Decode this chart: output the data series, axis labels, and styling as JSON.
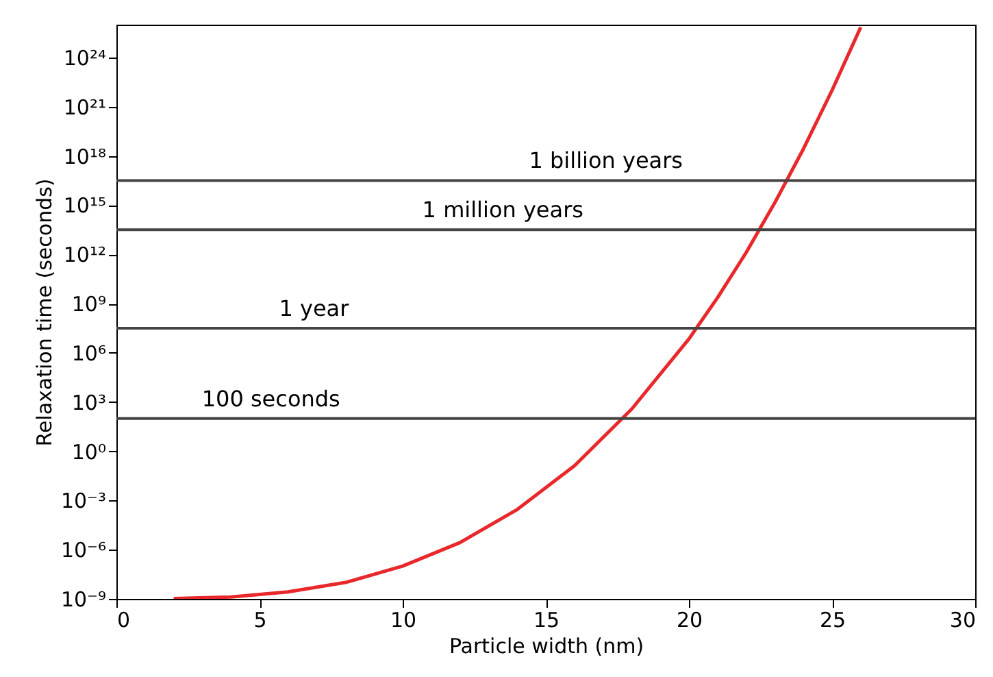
{
  "chart_data": {
    "type": "line",
    "xlabel": "Particle width (nm)",
    "ylabel": "Relaxation time (seconds)",
    "x": [
      2,
      4,
      6,
      8,
      10,
      12,
      14,
      16,
      18,
      20,
      21,
      22,
      23,
      24,
      25,
      26
    ],
    "series": [
      {
        "color": "#e8282a",
        "values": [
          1.04e-09,
          1.3e-09,
          2.7e-09,
          1e-08,
          1e-07,
          2.7e-06,
          0.00028,
          0.13,
          370,
          7000000.0,
          2300000000.0,
          1300000000000.0,
          1400000000000000.0,
          2.7e+18,
          1e+22,
          7e+25
        ]
      }
    ],
    "log": "y",
    "xlim": [
      0,
      30
    ],
    "xticks": [
      0,
      5,
      10,
      15,
      20,
      25,
      30
    ],
    "ylim": [
      1e-09,
      1e+26
    ],
    "yticks": [
      {
        "value": 1e-09,
        "label": "10⁻⁹"
      },
      {
        "value": 1e-06,
        "label": "10⁻⁶"
      },
      {
        "value": 0.001,
        "label": "10⁻³"
      },
      {
        "value": 1,
        "label": "10⁰"
      },
      {
        "value": 1000.0,
        "label": "10³"
      },
      {
        "value": 1000000.0,
        "label": "10⁶"
      },
      {
        "value": 1000000000.0,
        "label": "10⁹"
      },
      {
        "value": 1000000000000.0,
        "label": "10¹²"
      },
      {
        "value": 1000000000000000.0,
        "label": "10¹⁵"
      },
      {
        "value": 1e+18,
        "label": "10¹⁸"
      },
      {
        "value": 1e+21,
        "label": "10²¹"
      },
      {
        "value": 1e+24,
        "label": "10²⁴"
      }
    ],
    "ref_lines": [
      {
        "axis": "y",
        "value": 100,
        "label": "100 seconds",
        "color": "#444444"
      },
      {
        "axis": "y",
        "value": 31500000.0,
        "label": "1 year",
        "color": "#444444"
      },
      {
        "axis": "y",
        "value": 31500000000000.0,
        "label": "1 million years",
        "color": "#444444"
      },
      {
        "axis": "y",
        "value": 3.15e+16,
        "label": "1 billion years",
        "color": "#444444"
      }
    ],
    "grid": false
  }
}
